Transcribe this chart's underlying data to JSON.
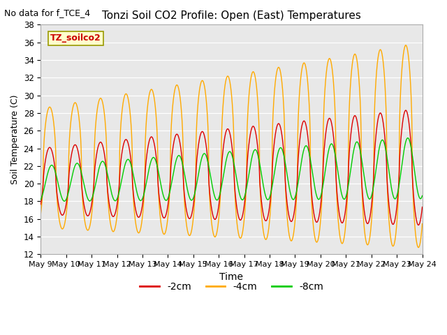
{
  "title": "Tonzi Soil CO2 Profile: Open (East) Temperatures",
  "subtitle": "No data for f_TCE_4",
  "xlabel": "Time",
  "ylabel": "Soil Temperature (C)",
  "ylim": [
    12,
    38
  ],
  "yticks": [
    12,
    14,
    16,
    18,
    20,
    22,
    24,
    26,
    28,
    30,
    32,
    34,
    36,
    38
  ],
  "x_tick_days": [
    9,
    10,
    11,
    12,
    13,
    14,
    15,
    16,
    17,
    18,
    19,
    20,
    21,
    22,
    23,
    24
  ],
  "legend_entries": [
    "-2cm",
    "-4cm",
    "-8cm"
  ],
  "colors": [
    "#dd0000",
    "#ffaa00",
    "#00cc00"
  ],
  "station_label": "TZ_soilco2",
  "bg_color": "#e8e8e8",
  "fig_width": 6.4,
  "fig_height": 4.8,
  "dpi": 100
}
